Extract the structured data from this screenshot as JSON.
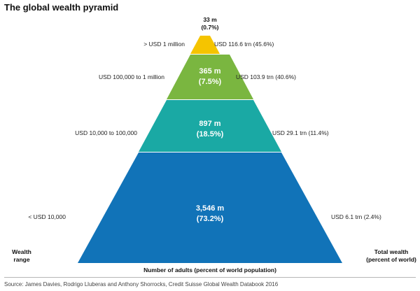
{
  "title": "The global wealth pyramid",
  "tiers": [
    {
      "adults": "33 m",
      "share": "(0.7%)",
      "wealth_range": "> USD 1 million",
      "total_wealth": "USD 116.6 trn (45.6%)",
      "color": "#f5c400"
    },
    {
      "adults": "365 m",
      "share": "(7.5%)",
      "wealth_range": "USD 100,000 to 1 million",
      "total_wealth": "USD 103.9 trn (40.6%)",
      "color": "#7ab640"
    },
    {
      "adults": "897 m",
      "share": "(18.5%)",
      "wealth_range": "USD 10,000 to 100,000",
      "total_wealth": "USD 29.1 trn (11.4%)",
      "color": "#1aa9a4"
    },
    {
      "adults": "3,546 m",
      "share": "(73.2%)",
      "wealth_range": "< USD 10,000",
      "total_wealth": "USD 6.1 trn (2.4%)",
      "color": "#1173b8"
    }
  ],
  "labels": {
    "wealth_range_line1": "Wealth",
    "wealth_range_line2": "range",
    "total_wealth_line1": "Total wealth",
    "total_wealth_line2": "(percent of world)",
    "x_axis": "Number of adults (percent of world population)"
  },
  "source": "Source: James Davies, Rodrigo Lluberas and Anthony Shorrocks, Credit Suisse Global Wealth Databook 2016"
}
